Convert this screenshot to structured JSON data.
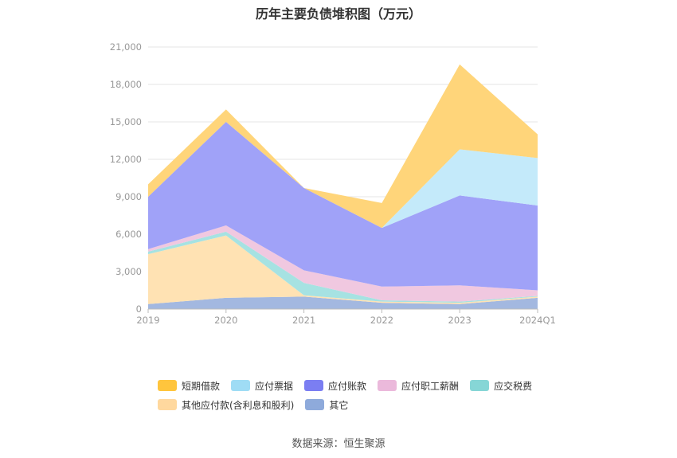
{
  "chart_data": {
    "type": "area",
    "stacked": true,
    "title": "历年主要负债堆积图（万元）",
    "categories": [
      "2019",
      "2020",
      "2021",
      "2022",
      "2023",
      "2024Q1"
    ],
    "ylim": [
      0,
      21000
    ],
    "yticks": [
      "0",
      "3,000",
      "6,000",
      "9,000",
      "12,000",
      "15,000",
      "18,000",
      "21,000"
    ],
    "ytick_values": [
      0,
      3000,
      6000,
      9000,
      12000,
      15000,
      18000,
      21000
    ],
    "grid": true,
    "legend_position": "bottom",
    "series": [
      {
        "name": "其它",
        "color": "#a3b8e0",
        "values": [
          400,
          900,
          1000,
          500,
          400,
          900
        ]
      },
      {
        "name": "其他应付款(含利息和股利)",
        "color": "#ffe2b3",
        "values": [
          4000,
          5000,
          100,
          100,
          100,
          100
        ]
      },
      {
        "name": "应交税费",
        "color": "#a6e2e2",
        "values": [
          200,
          300,
          1000,
          100,
          100,
          50
        ]
      },
      {
        "name": "应付职工薪酬",
        "color": "#f0c8e0",
        "values": [
          200,
          500,
          1000,
          1100,
          1300,
          450
        ]
      },
      {
        "name": "应付账款",
        "color": "#a0a2f8",
        "values": [
          4200,
          8300,
          6600,
          4700,
          7200,
          6800
        ]
      },
      {
        "name": "应付票据",
        "color": "#c4eafa",
        "values": [
          0,
          0,
          0,
          0,
          3700,
          3800
        ]
      },
      {
        "name": "短期借款",
        "color": "#ffd57a",
        "values": [
          1000,
          1000,
          0,
          2000,
          6800,
          1900
        ]
      }
    ]
  },
  "legend": {
    "rows": [
      [
        {
          "label": "短期借款",
          "color": "#ffc53d"
        },
        {
          "label": "应付票据",
          "color": "#9fdcf5"
        },
        {
          "label": "应付账款",
          "color": "#7b7ef2"
        },
        {
          "label": "应付职工薪酬",
          "color": "#ebb9db"
        },
        {
          "label": "应交税费",
          "color": "#86d6d6"
        }
      ],
      [
        {
          "label": "其他应付款(含利息和股利)",
          "color": "#ffd89e"
        },
        {
          "label": "其它",
          "color": "#8eaadb"
        }
      ]
    ]
  },
  "source_note": "数据来源：恒生聚源"
}
